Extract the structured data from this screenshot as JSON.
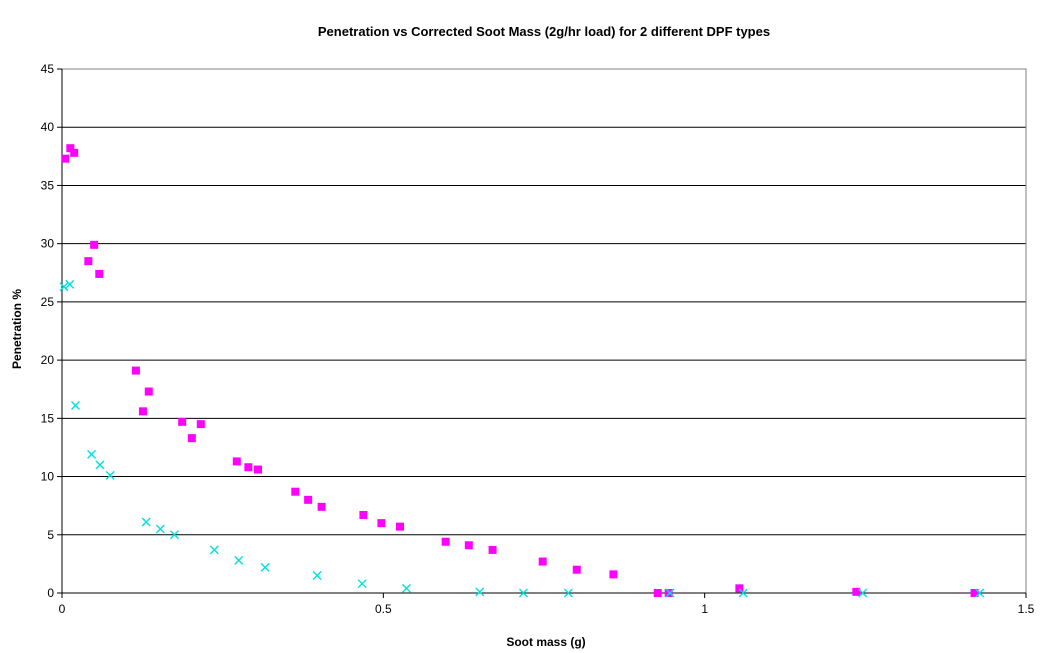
{
  "chart_data": {
    "type": "scatter",
    "title": "Penetration vs Corrected Soot Mass (2g/hr load) for 2 different DPF types",
    "xlabel": "Soot mass (g)",
    "ylabel": "Penetration %",
    "xlim": [
      0,
      1.5
    ],
    "ylim": [
      0,
      45
    ],
    "x_ticks": [
      "0",
      "0.5",
      "1",
      "1.5"
    ],
    "y_ticks": [
      "0",
      "5",
      "10",
      "15",
      "20",
      "25",
      "30",
      "35",
      "40",
      "45"
    ],
    "grid": "horizontal major gridlines",
    "legend": "none",
    "series": [
      {
        "marker": "square",
        "color": "#ff00ff",
        "points": [
          [
            0.005,
            37.3
          ],
          [
            0.013,
            38.2
          ],
          [
            0.019,
            37.8
          ],
          [
            0.041,
            28.5
          ],
          [
            0.05,
            29.9
          ],
          [
            0.058,
            27.4
          ],
          [
            0.115,
            19.1
          ],
          [
            0.126,
            15.6
          ],
          [
            0.135,
            17.3
          ],
          [
            0.187,
            14.7
          ],
          [
            0.202,
            13.3
          ],
          [
            0.216,
            14.5
          ],
          [
            0.272,
            11.3
          ],
          [
            0.29,
            10.8
          ],
          [
            0.305,
            10.6
          ],
          [
            0.363,
            8.7
          ],
          [
            0.383,
            8.0
          ],
          [
            0.404,
            7.4
          ],
          [
            0.469,
            6.7
          ],
          [
            0.497,
            6.0
          ],
          [
            0.526,
            5.7
          ],
          [
            0.597,
            4.4
          ],
          [
            0.633,
            4.1
          ],
          [
            0.67,
            3.7
          ],
          [
            0.748,
            2.7
          ],
          [
            0.801,
            2.0
          ],
          [
            0.858,
            1.6
          ],
          [
            0.927,
            0.0
          ],
          [
            0.944,
            0.0
          ],
          [
            1.054,
            0.4
          ],
          [
            1.236,
            0.1
          ],
          [
            1.42,
            0.0
          ]
        ]
      },
      {
        "marker": "x",
        "color": "#00e0e0",
        "points": [
          [
            0.003,
            26.3
          ],
          [
            0.012,
            26.5
          ],
          [
            0.021,
            16.1
          ],
          [
            0.046,
            11.9
          ],
          [
            0.059,
            11.0
          ],
          [
            0.075,
            10.1
          ],
          [
            0.131,
            6.1
          ],
          [
            0.153,
            5.5
          ],
          [
            0.175,
            5.0
          ],
          [
            0.237,
            3.7
          ],
          [
            0.275,
            2.8
          ],
          [
            0.316,
            2.2
          ],
          [
            0.397,
            1.5
          ],
          [
            0.467,
            0.8
          ],
          [
            0.536,
            0.4
          ],
          [
            0.65,
            0.1
          ],
          [
            0.718,
            0.0
          ],
          [
            0.788,
            0.0
          ],
          [
            0.946,
            0.0
          ],
          [
            1.06,
            0.0
          ],
          [
            1.246,
            0.0
          ],
          [
            1.428,
            0.0
          ]
        ]
      }
    ]
  }
}
